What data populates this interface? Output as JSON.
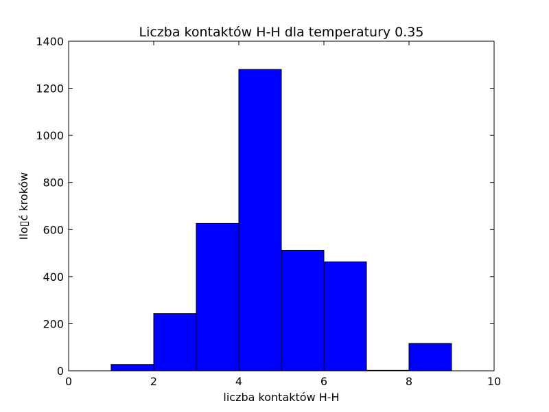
{
  "chart_data": {
    "type": "bar",
    "subtype": "histogram",
    "title": "Liczba kontaktów H-H dla temperatury 0.35",
    "xlabel": "liczba kontaktów H-H",
    "ylabel": "Ilo▯ć kroków",
    "xlim": [
      0,
      10
    ],
    "ylim": [
      0,
      1400
    ],
    "xticks": [
      "0",
      "2",
      "4",
      "6",
      "8",
      "10"
    ],
    "yticks": [
      "0",
      "200",
      "400",
      "600",
      "800",
      "1000",
      "1200",
      "1400"
    ],
    "bins": [
      {
        "x0": 0,
        "x1": 1,
        "value": 0
      },
      {
        "x0": 1,
        "x1": 2,
        "value": 27
      },
      {
        "x0": 2,
        "x1": 3,
        "value": 243
      },
      {
        "x0": 3,
        "x1": 4,
        "value": 626
      },
      {
        "x0": 4,
        "x1": 5,
        "value": 1280
      },
      {
        "x0": 5,
        "x1": 6,
        "value": 512
      },
      {
        "x0": 6,
        "x1": 7,
        "value": 463
      },
      {
        "x0": 7,
        "x1": 8,
        "value": 2
      },
      {
        "x0": 8,
        "x1": 9,
        "value": 116
      }
    ],
    "bar_color": "#0000ff",
    "edge_color": "#000000",
    "grid": false
  }
}
